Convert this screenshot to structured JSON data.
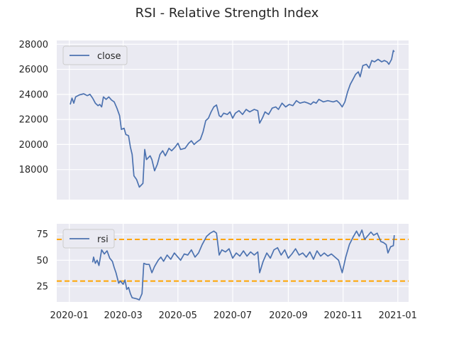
{
  "title": "RSI - Relative Strength Index",
  "colors": {
    "background": "#ffffff",
    "plot_bg": "#eaeaf2",
    "grid": "#ffffff",
    "line": "#4c72b0",
    "threshold": "#ffa500",
    "text": "#262626"
  },
  "chart_data": [
    {
      "type": "line",
      "legend_position": "top-left",
      "grid": true,
      "ylim": [
        15600,
        28300
      ],
      "yticks": [
        18000,
        20000,
        22000,
        24000,
        26000,
        28000
      ],
      "ytick_labels": [
        "18000",
        "20000",
        "22000",
        "24000",
        "26000",
        "28000"
      ],
      "xlim": [
        "2019-12-18",
        "2021-01-13"
      ],
      "xticks": [
        "2020-01-01",
        "2020-03-01",
        "2020-05-01",
        "2020-07-01",
        "2020-09-01",
        "2020-11-01",
        "2021-01-01"
      ],
      "xtick_labels": [],
      "series": [
        {
          "name": "close",
          "points": [
            [
              "2020-01-02",
              23200
            ],
            [
              "2020-01-04",
              23700
            ],
            [
              "2020-01-06",
              23300
            ],
            [
              "2020-01-08",
              23800
            ],
            [
              "2020-01-12",
              23950
            ],
            [
              "2020-01-17",
              24050
            ],
            [
              "2020-01-21",
              23900
            ],
            [
              "2020-01-24",
              24000
            ],
            [
              "2020-01-27",
              23700
            ],
            [
              "2020-01-30",
              23300
            ],
            [
              "2020-02-02",
              23100
            ],
            [
              "2020-02-04",
              23200
            ],
            [
              "2020-02-06",
              23000
            ],
            [
              "2020-02-08",
              23800
            ],
            [
              "2020-02-11",
              23600
            ],
            [
              "2020-02-14",
              23800
            ],
            [
              "2020-02-17",
              23550
            ],
            [
              "2020-02-20",
              23400
            ],
            [
              "2020-02-23",
              22900
            ],
            [
              "2020-02-26",
              22300
            ],
            [
              "2020-02-28",
              21200
            ],
            [
              "2020-03-02",
              21300
            ],
            [
              "2020-03-04",
              20800
            ],
            [
              "2020-03-07",
              20700
            ],
            [
              "2020-03-09",
              19800
            ],
            [
              "2020-03-11",
              19200
            ],
            [
              "2020-03-13",
              17500
            ],
            [
              "2020-03-16",
              17200
            ],
            [
              "2020-03-19",
              16600
            ],
            [
              "2020-03-23",
              16900
            ],
            [
              "2020-03-25",
              19600
            ],
            [
              "2020-03-27",
              18800
            ],
            [
              "2020-03-31",
              19100
            ],
            [
              "2020-04-02",
              18800
            ],
            [
              "2020-04-05",
              17900
            ],
            [
              "2020-04-08",
              18400
            ],
            [
              "2020-04-11",
              19200
            ],
            [
              "2020-04-14",
              19500
            ],
            [
              "2020-04-17",
              19100
            ],
            [
              "2020-04-21",
              19700
            ],
            [
              "2020-04-24",
              19500
            ],
            [
              "2020-04-28",
              19800
            ],
            [
              "2020-05-01",
              20100
            ],
            [
              "2020-05-04",
              19600
            ],
            [
              "2020-05-09",
              19700
            ],
            [
              "2020-05-13",
              20100
            ],
            [
              "2020-05-16",
              20300
            ],
            [
              "2020-05-19",
              20000
            ],
            [
              "2020-05-22",
              20200
            ],
            [
              "2020-05-26",
              20400
            ],
            [
              "2020-05-29",
              21000
            ],
            [
              "2020-06-01",
              21900
            ],
            [
              "2020-06-04",
              22100
            ],
            [
              "2020-06-07",
              22600
            ],
            [
              "2020-06-10",
              23000
            ],
            [
              "2020-06-13",
              23150
            ],
            [
              "2020-06-16",
              22300
            ],
            [
              "2020-06-18",
              22200
            ],
            [
              "2020-06-21",
              22500
            ],
            [
              "2020-06-25",
              22400
            ],
            [
              "2020-06-28",
              22600
            ],
            [
              "2020-07-01",
              22100
            ],
            [
              "2020-07-04",
              22500
            ],
            [
              "2020-07-08",
              22700
            ],
            [
              "2020-07-12",
              22400
            ],
            [
              "2020-07-16",
              22800
            ],
            [
              "2020-07-20",
              22600
            ],
            [
              "2020-07-25",
              22800
            ],
            [
              "2020-07-29",
              22700
            ],
            [
              "2020-07-31",
              21700
            ],
            [
              "2020-08-03",
              22100
            ],
            [
              "2020-08-06",
              22600
            ],
            [
              "2020-08-10",
              22400
            ],
            [
              "2020-08-14",
              22900
            ],
            [
              "2020-08-18",
              23000
            ],
            [
              "2020-08-21",
              22800
            ],
            [
              "2020-08-25",
              23300
            ],
            [
              "2020-08-29",
              23000
            ],
            [
              "2020-09-02",
              23200
            ],
            [
              "2020-09-06",
              23100
            ],
            [
              "2020-09-10",
              23500
            ],
            [
              "2020-09-14",
              23300
            ],
            [
              "2020-09-19",
              23400
            ],
            [
              "2020-09-23",
              23300
            ],
            [
              "2020-09-26",
              23200
            ],
            [
              "2020-09-29",
              23400
            ],
            [
              "2020-10-02",
              23300
            ],
            [
              "2020-10-05",
              23600
            ],
            [
              "2020-10-10",
              23400
            ],
            [
              "2020-10-15",
              23500
            ],
            [
              "2020-10-21",
              23400
            ],
            [
              "2020-10-25",
              23500
            ],
            [
              "2020-10-28",
              23300
            ],
            [
              "2020-10-31",
              23000
            ],
            [
              "2020-11-03",
              23400
            ],
            [
              "2020-11-06",
              24200
            ],
            [
              "2020-11-09",
              24800
            ],
            [
              "2020-11-12",
              25200
            ],
            [
              "2020-11-15",
              25600
            ],
            [
              "2020-11-18",
              25800
            ],
            [
              "2020-11-20",
              25400
            ],
            [
              "2020-11-23",
              26300
            ],
            [
              "2020-11-27",
              26400
            ],
            [
              "2020-11-30",
              26100
            ],
            [
              "2020-12-03",
              26700
            ],
            [
              "2020-12-06",
              26600
            ],
            [
              "2020-12-10",
              26800
            ],
            [
              "2020-12-14",
              26600
            ],
            [
              "2020-12-17",
              26700
            ],
            [
              "2020-12-20",
              26600
            ],
            [
              "2020-12-22",
              26400
            ],
            [
              "2020-12-25",
              26800
            ],
            [
              "2020-12-27",
              27500
            ],
            [
              "2020-12-28",
              27400
            ]
          ]
        }
      ]
    },
    {
      "type": "line",
      "legend_position": "top-left",
      "grid": true,
      "ylim": [
        10,
        85
      ],
      "yticks": [
        25,
        50,
        75
      ],
      "ytick_labels": [
        "25",
        "50",
        "75"
      ],
      "xlim": [
        "2019-12-18",
        "2021-01-13"
      ],
      "xticks": [
        "2020-01-01",
        "2020-03-01",
        "2020-05-01",
        "2020-07-01",
        "2020-09-01",
        "2020-11-01",
        "2021-01-01"
      ],
      "xtick_labels": [
        "2020-01",
        "2020-03",
        "2020-05",
        "2020-07",
        "2020-09",
        "2020-11",
        "2021-01"
      ],
      "thresholds": [
        70,
        30
      ],
      "series": [
        {
          "name": "rsi",
          "points": [
            [
              "2020-01-27",
              48
            ],
            [
              "2020-01-28",
              53
            ],
            [
              "2020-01-30",
              47
            ],
            [
              "2020-02-01",
              50
            ],
            [
              "2020-02-03",
              45
            ],
            [
              "2020-02-06",
              60
            ],
            [
              "2020-02-09",
              56
            ],
            [
              "2020-02-12",
              59
            ],
            [
              "2020-02-15",
              52
            ],
            [
              "2020-02-18",
              49
            ],
            [
              "2020-02-20",
              43
            ],
            [
              "2020-02-22",
              38
            ],
            [
              "2020-02-25",
              28
            ],
            [
              "2020-02-27",
              30
            ],
            [
              "2020-03-01",
              27
            ],
            [
              "2020-03-03",
              31
            ],
            [
              "2020-03-05",
              22
            ],
            [
              "2020-03-07",
              24
            ],
            [
              "2020-03-09",
              18
            ],
            [
              "2020-03-11",
              14
            ],
            [
              "2020-03-16",
              13
            ],
            [
              "2020-03-19",
              12
            ],
            [
              "2020-03-22",
              18
            ],
            [
              "2020-03-24",
              47
            ],
            [
              "2020-03-27",
              46
            ],
            [
              "2020-03-30",
              46
            ],
            [
              "2020-04-02",
              38
            ],
            [
              "2020-04-05",
              44
            ],
            [
              "2020-04-09",
              50
            ],
            [
              "2020-04-12",
              53
            ],
            [
              "2020-04-15",
              49
            ],
            [
              "2020-04-19",
              55
            ],
            [
              "2020-04-23",
              51
            ],
            [
              "2020-04-27",
              57
            ],
            [
              "2020-05-01",
              53
            ],
            [
              "2020-05-04",
              50
            ],
            [
              "2020-05-08",
              56
            ],
            [
              "2020-05-12",
              55
            ],
            [
              "2020-05-16",
              60
            ],
            [
              "2020-05-20",
              53
            ],
            [
              "2020-05-24",
              57
            ],
            [
              "2020-05-28",
              65
            ],
            [
              "2020-06-02",
              73
            ],
            [
              "2020-06-06",
              76
            ],
            [
              "2020-06-10",
              78
            ],
            [
              "2020-06-13",
              76
            ],
            [
              "2020-06-16",
              55
            ],
            [
              "2020-06-19",
              60
            ],
            [
              "2020-06-23",
              58
            ],
            [
              "2020-06-27",
              61
            ],
            [
              "2020-07-01",
              52
            ],
            [
              "2020-07-05",
              57
            ],
            [
              "2020-07-09",
              54
            ],
            [
              "2020-07-13",
              59
            ],
            [
              "2020-07-17",
              54
            ],
            [
              "2020-07-21",
              58
            ],
            [
              "2020-07-25",
              55
            ],
            [
              "2020-07-29",
              58
            ],
            [
              "2020-07-31",
              38
            ],
            [
              "2020-08-04",
              49
            ],
            [
              "2020-08-08",
              57
            ],
            [
              "2020-08-12",
              52
            ],
            [
              "2020-08-16",
              60
            ],
            [
              "2020-08-20",
              62
            ],
            [
              "2020-08-24",
              55
            ],
            [
              "2020-08-28",
              60
            ],
            [
              "2020-09-01",
              52
            ],
            [
              "2020-09-05",
              56
            ],
            [
              "2020-09-09",
              61
            ],
            [
              "2020-09-13",
              55
            ],
            [
              "2020-09-17",
              57
            ],
            [
              "2020-09-21",
              53
            ],
            [
              "2020-09-25",
              58
            ],
            [
              "2020-09-29",
              51
            ],
            [
              "2020-10-03",
              59
            ],
            [
              "2020-10-07",
              54
            ],
            [
              "2020-10-11",
              57
            ],
            [
              "2020-10-15",
              54
            ],
            [
              "2020-10-19",
              56
            ],
            [
              "2020-10-23",
              53
            ],
            [
              "2020-10-27",
              50
            ],
            [
              "2020-10-31",
              38
            ],
            [
              "2020-11-04",
              53
            ],
            [
              "2020-11-08",
              65
            ],
            [
              "2020-11-12",
              72
            ],
            [
              "2020-11-16",
              78
            ],
            [
              "2020-11-19",
              73
            ],
            [
              "2020-11-22",
              79
            ],
            [
              "2020-11-25",
              70
            ],
            [
              "2020-11-29",
              74
            ],
            [
              "2020-12-02",
              77
            ],
            [
              "2020-12-05",
              74
            ],
            [
              "2020-12-09",
              76
            ],
            [
              "2020-12-13",
              68
            ],
            [
              "2020-12-16",
              67
            ],
            [
              "2020-12-19",
              65
            ],
            [
              "2020-12-21",
              57
            ],
            [
              "2020-12-24",
              63
            ],
            [
              "2020-12-27",
              64
            ],
            [
              "2020-12-28",
              74
            ]
          ]
        }
      ]
    }
  ]
}
